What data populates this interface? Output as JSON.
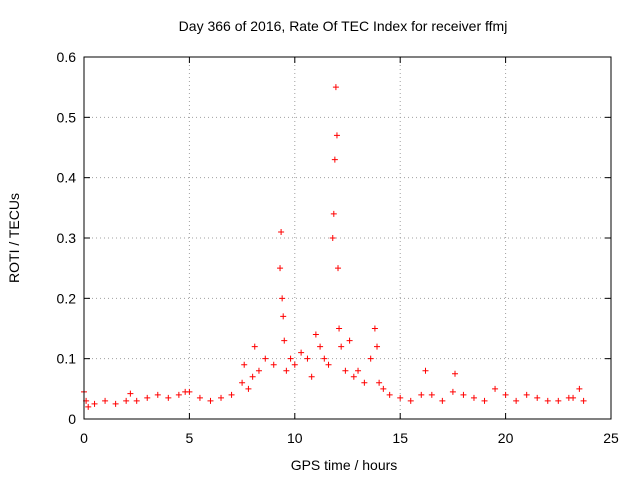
{
  "chart_data": {
    "type": "scatter",
    "title": "Day 366 of 2016, Rate Of TEC Index for receiver ffmj",
    "xlabel": "GPS time / hours",
    "ylabel": "ROTI / TECUs",
    "xlim": [
      0,
      25
    ],
    "ylim": [
      0,
      0.6
    ],
    "grid": true,
    "marker": "+",
    "color": "#ff0000",
    "x_ticks": [
      0,
      5,
      10,
      15,
      20,
      25
    ],
    "x_tick_labels": [
      "0",
      "5",
      "10",
      "15",
      "20",
      "25"
    ],
    "y_ticks": [
      0,
      0.1,
      0.2,
      0.3,
      0.4,
      0.5,
      0.6
    ],
    "y_tick_labels": [
      "0",
      "0.1",
      "0.2",
      "0.3",
      "0.4",
      "0.5",
      "0.6"
    ],
    "series": [
      {
        "name": "ROTI",
        "x": [
          0.0,
          0.1,
          0.2,
          0.5,
          1.0,
          1.5,
          2.0,
          2.2,
          2.5,
          3.0,
          3.5,
          4.0,
          4.5,
          4.8,
          5.0,
          5.5,
          6.0,
          6.5,
          7.0,
          7.5,
          7.6,
          7.8,
          8.0,
          8.1,
          8.3,
          8.6,
          9.0,
          9.3,
          9.35,
          9.4,
          9.45,
          9.5,
          9.6,
          9.8,
          10.0,
          10.3,
          10.6,
          10.8,
          11.0,
          11.2,
          11.4,
          11.6,
          11.8,
          11.85,
          11.9,
          11.95,
          12.0,
          12.05,
          12.1,
          12.2,
          12.4,
          12.6,
          12.8,
          13.0,
          13.3,
          13.6,
          13.8,
          13.9,
          14.0,
          14.2,
          14.5,
          15.0,
          15.5,
          16.0,
          16.2,
          16.5,
          17.0,
          17.5,
          17.6,
          18.0,
          18.5,
          19.0,
          19.5,
          20.0,
          20.5,
          21.0,
          21.5,
          22.0,
          22.5,
          23.0,
          23.2,
          23.5,
          23.7
        ],
        "y": [
          0.045,
          0.03,
          0.02,
          0.025,
          0.03,
          0.025,
          0.03,
          0.042,
          0.03,
          0.035,
          0.04,
          0.035,
          0.04,
          0.045,
          0.045,
          0.035,
          0.03,
          0.035,
          0.04,
          0.06,
          0.09,
          0.05,
          0.07,
          0.12,
          0.08,
          0.1,
          0.09,
          0.25,
          0.31,
          0.2,
          0.17,
          0.13,
          0.08,
          0.1,
          0.09,
          0.11,
          0.1,
          0.07,
          0.14,
          0.12,
          0.1,
          0.09,
          0.3,
          0.34,
          0.43,
          0.55,
          0.47,
          0.25,
          0.15,
          0.12,
          0.08,
          0.13,
          0.07,
          0.08,
          0.06,
          0.1,
          0.15,
          0.12,
          0.06,
          0.05,
          0.04,
          0.035,
          0.03,
          0.04,
          0.08,
          0.04,
          0.03,
          0.045,
          0.075,
          0.04,
          0.035,
          0.03,
          0.05,
          0.04,
          0.03,
          0.04,
          0.035,
          0.03,
          0.03,
          0.035,
          0.035,
          0.05,
          0.03
        ]
      }
    ]
  }
}
